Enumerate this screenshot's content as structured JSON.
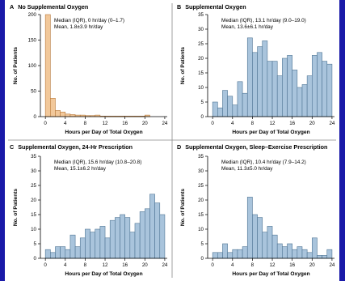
{
  "chart_data": [
    {
      "type": "bar",
      "letter": "A",
      "title": "No Supplemental Oxygen",
      "xlabel": "Hours per Day of Total Oxygen",
      "ylabel": "No. of Patients",
      "xlim": [
        -1,
        24.5
      ],
      "ylim": [
        0,
        200
      ],
      "xticks": [
        0,
        4,
        8,
        12,
        16,
        20,
        24
      ],
      "yticks": [
        0,
        50,
        100,
        150,
        200
      ],
      "bin_width": 1,
      "bin_starts": [
        0,
        1,
        2,
        3,
        4,
        5,
        6,
        7,
        8,
        9,
        10,
        11,
        12,
        13,
        14,
        15,
        16,
        17,
        18,
        19,
        20,
        21,
        22,
        23
      ],
      "values": [
        200,
        36,
        12,
        9,
        5,
        4,
        3,
        3,
        2,
        2,
        3,
        1,
        1,
        1,
        1,
        1,
        1,
        1,
        1,
        1,
        3,
        0,
        0,
        0
      ],
      "bar_color": "#f2c89a",
      "bar_stroke": "#b97a3b",
      "annotation": [
        "Median (IQR), 0 hr/day (0–1.7)",
        "Mean, 1.8±3.9 hr/day"
      ]
    },
    {
      "type": "bar",
      "letter": "B",
      "title": "Supplemental Oxygen",
      "xlabel": "Hours per Day of Total Oxygen",
      "ylabel": "No. of Patients",
      "xlim": [
        -1,
        24.5
      ],
      "ylim": [
        0,
        35
      ],
      "xticks": [
        0,
        4,
        8,
        12,
        16,
        20,
        24
      ],
      "yticks": [
        0,
        5,
        10,
        15,
        20,
        25,
        30,
        35
      ],
      "bin_width": 1,
      "bin_starts": [
        0,
        1,
        2,
        3,
        4,
        5,
        6,
        7,
        8,
        9,
        10,
        11,
        12,
        13,
        14,
        15,
        16,
        17,
        18,
        19,
        20,
        21,
        22,
        23
      ],
      "values": [
        5,
        3,
        9,
        7,
        4,
        12,
        8,
        27,
        22,
        24,
        26,
        19,
        19,
        14,
        20,
        21,
        16,
        10,
        11,
        14,
        21,
        22,
        19,
        18
      ],
      "bar_color": "#a9c4dc",
      "bar_stroke": "#4f7594",
      "annotation": [
        "Median (IQR), 13.1 hr/day (9.0–19.0)",
        "Mean, 13.6±6.1 hr/day"
      ]
    },
    {
      "type": "bar",
      "letter": "C",
      "title": "Supplemental Oxygen, 24-Hr Prescription",
      "xlabel": "Hours per Day of Total Oxygen",
      "ylabel": "No. of Patients",
      "xlim": [
        -1,
        24.5
      ],
      "ylim": [
        0,
        35
      ],
      "xticks": [
        0,
        4,
        8,
        12,
        16,
        20,
        24
      ],
      "yticks": [
        0,
        5,
        10,
        15,
        20,
        25,
        30,
        35
      ],
      "bin_width": 1,
      "bin_starts": [
        0,
        1,
        2,
        3,
        4,
        5,
        6,
        7,
        8,
        9,
        10,
        11,
        12,
        13,
        14,
        15,
        16,
        17,
        18,
        19,
        20,
        21,
        22,
        23
      ],
      "values": [
        3,
        2,
        4,
        4,
        3,
        8,
        4,
        7,
        10,
        9,
        10,
        11,
        7,
        13,
        14,
        15,
        14,
        9,
        12,
        16,
        17,
        22,
        19,
        15
      ],
      "bar_color": "#a9c4dc",
      "bar_stroke": "#4f7594",
      "annotation": [
        "Median (IQR), 15.6 hr/day (10.8–20.8)",
        "Mean, 15.1±6.2 hr/day"
      ]
    },
    {
      "type": "bar",
      "letter": "D",
      "title": "Supplemental Oxygen, Sleep–Exercise Prescription",
      "xlabel": "Hours per Day of Total Oxygen",
      "ylabel": "No. of Patients",
      "xlim": [
        -1,
        24.5
      ],
      "ylim": [
        0,
        35
      ],
      "xticks": [
        0,
        4,
        8,
        12,
        16,
        20,
        24
      ],
      "yticks": [
        0,
        5,
        10,
        15,
        20,
        25,
        30,
        35
      ],
      "bin_width": 1,
      "bin_starts": [
        0,
        1,
        2,
        3,
        4,
        5,
        6,
        7,
        8,
        9,
        10,
        11,
        12,
        13,
        14,
        15,
        16,
        17,
        18,
        19,
        20,
        21,
        22,
        23
      ],
      "values": [
        2,
        2,
        5,
        2,
        3,
        3,
        4,
        21,
        15,
        14,
        9,
        11,
        8,
        5,
        4,
        5,
        3,
        4,
        3,
        2,
        7,
        1,
        1,
        3
      ],
      "bar_color": "#a9c4dc",
      "bar_stroke": "#4f7594",
      "annotation": [
        "Median (IQR), 10.4 hr/day (7.9–14.2)",
        "Mean, 11.3±5.0 hr/day"
      ]
    }
  ],
  "colors": {
    "background": "#1414a0",
    "figure": "#ffffff",
    "divider": "#8a8a8a"
  }
}
